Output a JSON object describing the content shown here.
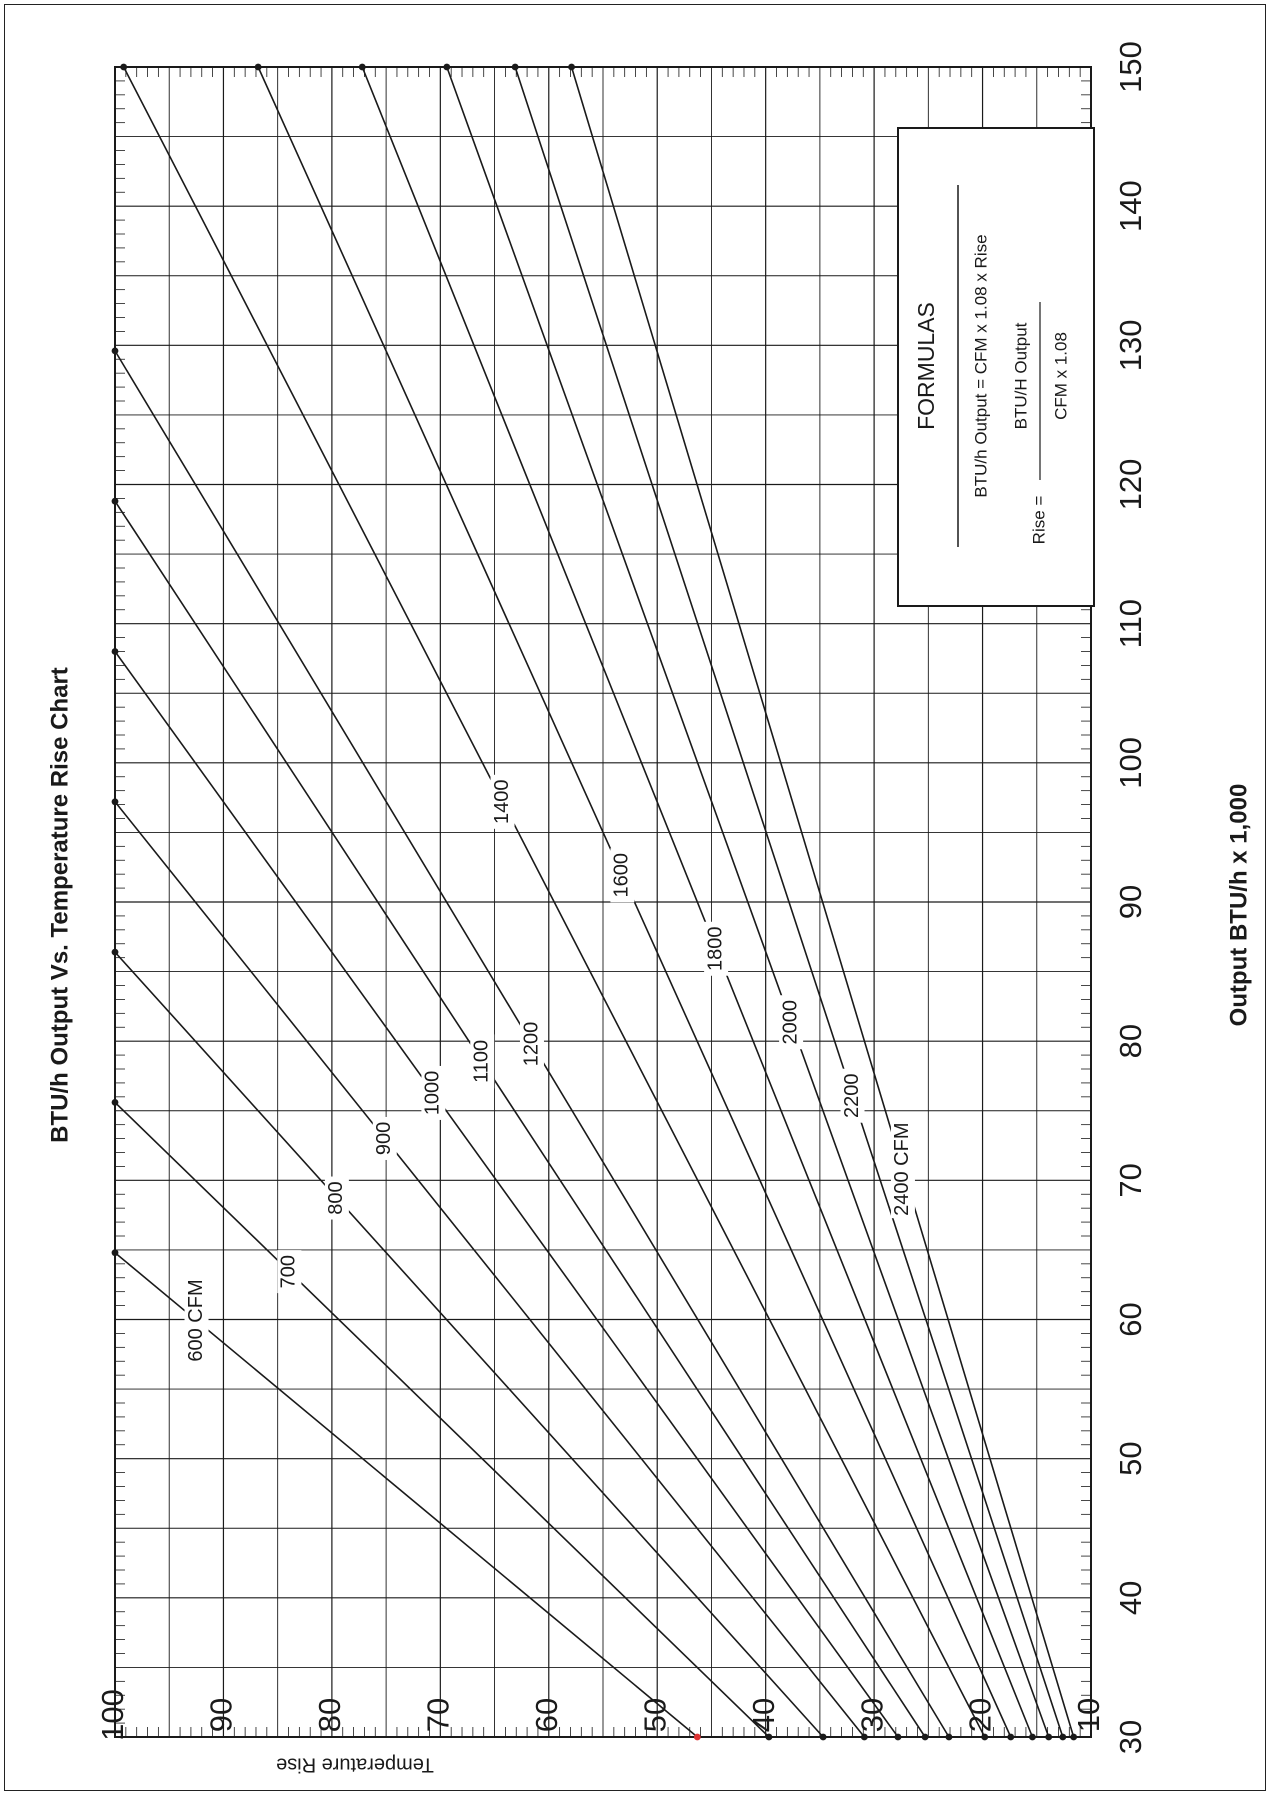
{
  "chart_data": {
    "type": "line",
    "title": "BTU/h Output Vs. Temperature Rise Chart",
    "xlabel": "Output BTU/h x 1,000",
    "ylabel": "Temperature Rise",
    "xlim": [
      30,
      150
    ],
    "ylim": [
      10,
      100
    ],
    "x_ticks": [
      "30",
      "40",
      "50",
      "60",
      "70",
      "80",
      "90",
      "100",
      "110",
      "120",
      "130",
      "140",
      "150"
    ],
    "y_ticks": [
      "10",
      "20",
      "30",
      "40",
      "50",
      "60",
      "70",
      "80",
      "90",
      "100"
    ],
    "grid": true,
    "formula": "Rise = BTU/h Output / (CFM x 1.08)",
    "series": [
      {
        "label": "600 CFM",
        "cfm": 600,
        "x": [
          30,
          64.8
        ],
        "y": [
          46.3,
          100
        ]
      },
      {
        "label": "700",
        "cfm": 700,
        "x": [
          30,
          75.6
        ],
        "y": [
          39.7,
          100
        ]
      },
      {
        "label": "800",
        "cfm": 800,
        "x": [
          30,
          86.4
        ],
        "y": [
          34.7,
          100
        ]
      },
      {
        "label": "900",
        "cfm": 900,
        "x": [
          30,
          97.2
        ],
        "y": [
          30.9,
          100
        ]
      },
      {
        "label": "1000",
        "cfm": 1000,
        "x": [
          30,
          108
        ],
        "y": [
          27.8,
          100
        ]
      },
      {
        "label": "1100",
        "cfm": 1100,
        "x": [
          30,
          118.8
        ],
        "y": [
          25.3,
          100
        ]
      },
      {
        "label": "1200",
        "cfm": 1200,
        "x": [
          30,
          129.6
        ],
        "y": [
          23.1,
          100
        ]
      },
      {
        "label": "1400",
        "cfm": 1400,
        "x": [
          30,
          150
        ],
        "y": [
          19.8,
          99.2
        ]
      },
      {
        "label": "1600",
        "cfm": 1600,
        "x": [
          30,
          150
        ],
        "y": [
          17.4,
          86.8
        ]
      },
      {
        "label": "1800",
        "cfm": 1800,
        "x": [
          30,
          150
        ],
        "y": [
          15.4,
          77.2
        ]
      },
      {
        "label": "2000",
        "cfm": 2000,
        "x": [
          30,
          150
        ],
        "y": [
          13.9,
          69.4
        ]
      },
      {
        "label": "2200",
        "cfm": 2200,
        "x": [
          30,
          150
        ],
        "y": [
          12.6,
          63.1
        ]
      },
      {
        "label": "2400 CFM",
        "cfm": 2400,
        "x": [
          30,
          150
        ],
        "y": [
          11.6,
          57.9
        ]
      }
    ]
  },
  "formulas": {
    "title": "FORMULAS",
    "line1": "BTU/h Output = CFM x 1.08 x Rise",
    "rise_prefix": "Rise =",
    "numerator": "BTU/H Output",
    "denominator": "CFM x 1.08"
  }
}
